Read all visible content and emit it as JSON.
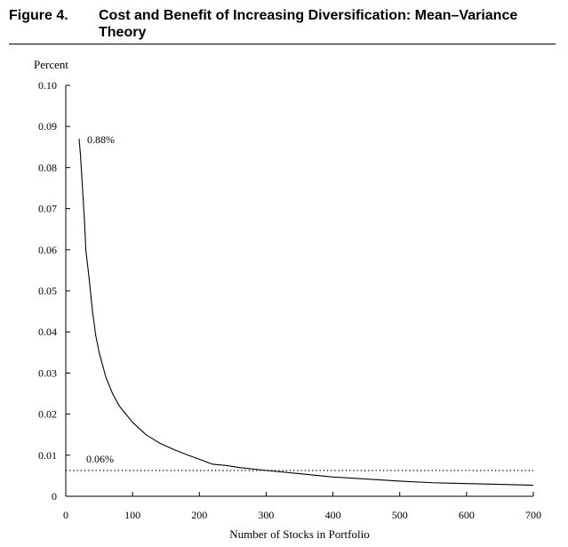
{
  "figure": {
    "label": "Figure 4.",
    "title": "Cost and Benefit of Increasing Diversification: Mean–Variance Theory"
  },
  "chart_data": {
    "type": "line",
    "ylabel": "Percent",
    "xlabel": "Number of Stocks in Portfolio",
    "xlim": [
      0,
      700
    ],
    "ylim": [
      0,
      0.1
    ],
    "x_ticks": [
      0,
      100,
      200,
      300,
      400,
      500,
      600,
      700
    ],
    "y_ticks": [
      0,
      0.01,
      0.02,
      0.03,
      0.04,
      0.05,
      0.06,
      0.07,
      0.08,
      0.09,
      0.1
    ],
    "y_tick_labels": [
      "0",
      "0.01",
      "0.02",
      "0.03",
      "0.04",
      "0.05",
      "0.06",
      "0.07",
      "0.08",
      "0.09",
      "0.10"
    ],
    "grid": false,
    "series": [
      {
        "style": "solid",
        "color": "#000000",
        "x": [
          20,
          22,
          25,
          28,
          30,
          35,
          40,
          45,
          50,
          60,
          70,
          80,
          90,
          100,
          120,
          140,
          160,
          180,
          200,
          220,
          240,
          260,
          300,
          350,
          400,
          450,
          500,
          550,
          600,
          650,
          700
        ],
        "y": [
          0.087,
          0.083,
          0.075,
          0.067,
          0.06,
          0.053,
          0.045,
          0.039,
          0.035,
          0.029,
          0.025,
          0.022,
          0.02,
          0.018,
          0.015,
          0.013,
          0.0115,
          0.0102,
          0.009,
          0.0078,
          0.0075,
          0.007,
          0.0063,
          0.0055,
          0.0047,
          0.0042,
          0.0037,
          0.0033,
          0.0031,
          0.0029,
          0.0027
        ],
        "label": "0.88%"
      },
      {
        "style": "dotted",
        "color": "#000000",
        "x": [
          0,
          700
        ],
        "y": [
          0.0063,
          0.0063
        ],
        "label": "0.06%"
      }
    ]
  }
}
